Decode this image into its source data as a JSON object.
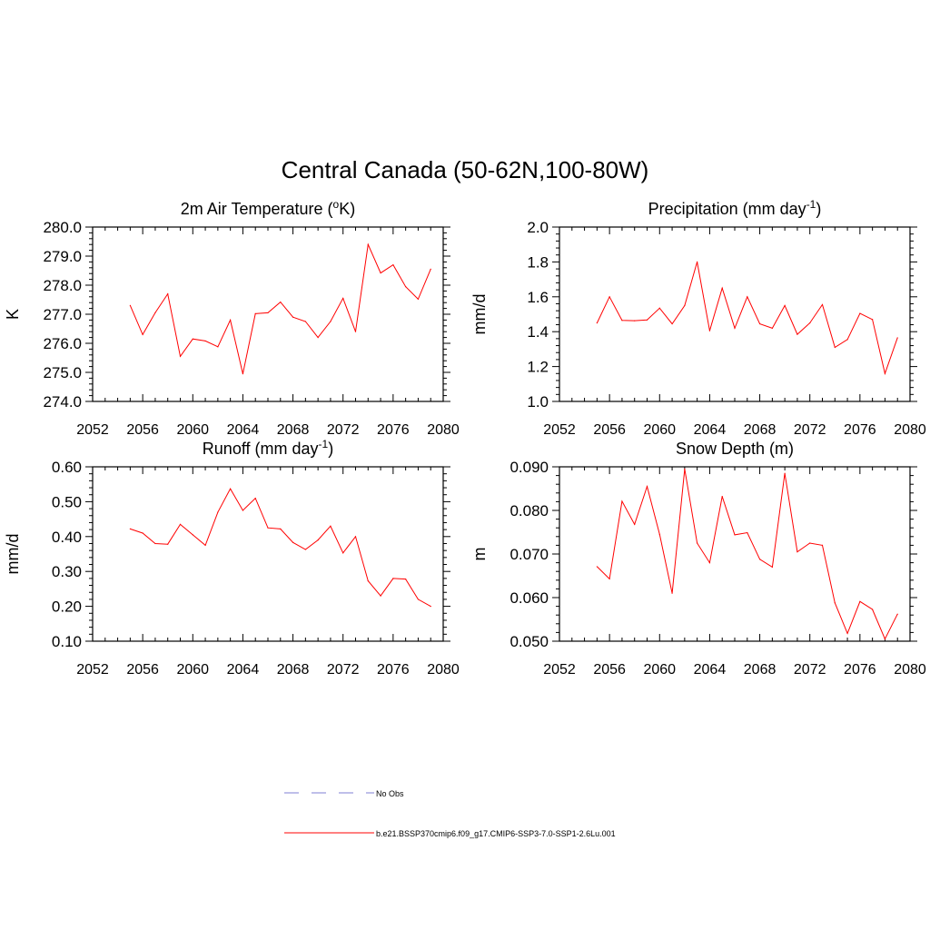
{
  "figure": {
    "title": "Central Canada (50-62N,100-80W)"
  },
  "colors": {
    "series": "#ff0000",
    "obs": "#9999dd",
    "axis": "#000000"
  },
  "legend": {
    "obs_label": "No Obs",
    "model_label": "b.e21.BSSP370cmip6.f09_g17.CMIP6-SSP3-7.0-SSP1-2.6Lu.001"
  },
  "chart_data": [
    {
      "type": "line",
      "title": "2m Air Temperature (oK)",
      "title_main": "2m Air Temperature (",
      "title_sup": "o",
      "title_end": "K)",
      "ylabel": "K",
      "xlim": [
        2052,
        2080
      ],
      "ylim": [
        274.0,
        280.0
      ],
      "xticks": [
        2052,
        2056,
        2060,
        2064,
        2068,
        2072,
        2076,
        2080
      ],
      "yticks": [
        274.0,
        275.0,
        276.0,
        277.0,
        278.0,
        279.0,
        280.0
      ],
      "ytick_labels": [
        "274.0",
        "275.0",
        "276.0",
        "277.0",
        "278.0",
        "279.0",
        "280.0"
      ],
      "x": [
        2055,
        2056,
        2057,
        2058,
        2059,
        2060,
        2061,
        2062,
        2063,
        2064,
        2065,
        2066,
        2067,
        2068,
        2069,
        2070,
        2071,
        2072,
        2073,
        2074,
        2075,
        2076,
        2077,
        2078,
        2079
      ],
      "y": [
        277.3,
        276.3,
        277.05,
        277.7,
        275.55,
        276.15,
        276.08,
        275.88,
        276.8,
        274.95,
        277.02,
        277.05,
        277.42,
        276.9,
        276.75,
        276.2,
        276.75,
        277.55,
        276.4,
        279.4,
        278.42,
        278.7,
        277.95,
        277.52,
        278.55
      ]
    },
    {
      "type": "line",
      "title": "Precipitation (mm day-1)",
      "title_main": "Precipitation (mm day",
      "title_sup": "-1",
      "title_end": ")",
      "ylabel": "mm/d",
      "xlim": [
        2052,
        2080
      ],
      "ylim": [
        1.0,
        2.0
      ],
      "xticks": [
        2052,
        2056,
        2060,
        2064,
        2068,
        2072,
        2076,
        2080
      ],
      "yticks": [
        1.0,
        1.2,
        1.4,
        1.6,
        1.8,
        2.0
      ],
      "ytick_labels": [
        "1.0",
        "1.2",
        "1.4",
        "1.6",
        "1.8",
        "2.0"
      ],
      "x": [
        2055,
        2056,
        2057,
        2058,
        2059,
        2060,
        2061,
        2062,
        2063,
        2064,
        2065,
        2066,
        2067,
        2068,
        2069,
        2070,
        2071,
        2072,
        2073,
        2074,
        2075,
        2076,
        2077,
        2078,
        2079
      ],
      "y": [
        1.45,
        1.6,
        1.465,
        1.463,
        1.467,
        1.535,
        1.445,
        1.55,
        1.8,
        1.405,
        1.65,
        1.42,
        1.6,
        1.445,
        1.42,
        1.55,
        1.385,
        1.45,
        1.555,
        1.31,
        1.355,
        1.505,
        1.47,
        1.16,
        1.365
      ]
    },
    {
      "type": "line",
      "title": "Runoff (mm day-1)",
      "title_main": "Runoff (mm day",
      "title_sup": "-1",
      "title_end": ")",
      "ylabel": "mm/d",
      "xlim": [
        2052,
        2080
      ],
      "ylim": [
        0.1,
        0.6
      ],
      "xticks": [
        2052,
        2056,
        2060,
        2064,
        2068,
        2072,
        2076,
        2080
      ],
      "yticks": [
        0.1,
        0.2,
        0.3,
        0.4,
        0.5,
        0.6
      ],
      "ytick_labels": [
        "0.10",
        "0.20",
        "0.30",
        "0.40",
        "0.50",
        "0.60"
      ],
      "x": [
        2055,
        2056,
        2057,
        2058,
        2059,
        2060,
        2061,
        2062,
        2063,
        2064,
        2065,
        2066,
        2067,
        2068,
        2069,
        2070,
        2071,
        2072,
        2073,
        2074,
        2075,
        2076,
        2077,
        2078,
        2079
      ],
      "y": [
        0.422,
        0.41,
        0.38,
        0.378,
        0.435,
        0.405,
        0.375,
        0.47,
        0.537,
        0.475,
        0.51,
        0.425,
        0.422,
        0.383,
        0.363,
        0.39,
        0.43,
        0.353,
        0.4,
        0.273,
        0.23,
        0.28,
        0.278,
        0.22,
        0.2
      ]
    },
    {
      "type": "line",
      "title": "Snow Depth (m)",
      "title_main": "Snow Depth (m)",
      "title_sup": "",
      "title_end": "",
      "ylabel": "m",
      "xlim": [
        2052,
        2080
      ],
      "ylim": [
        0.05,
        0.09
      ],
      "xticks": [
        2052,
        2056,
        2060,
        2064,
        2068,
        2072,
        2076,
        2080
      ],
      "yticks": [
        0.05,
        0.06,
        0.07,
        0.08,
        0.09
      ],
      "ytick_labels": [
        "0.050",
        "0.060",
        "0.070",
        "0.080",
        "0.090"
      ],
      "x": [
        2055,
        2056,
        2057,
        2058,
        2059,
        2060,
        2061,
        2062,
        2063,
        2064,
        2065,
        2066,
        2067,
        2068,
        2069,
        2070,
        2071,
        2072,
        2073,
        2074,
        2075,
        2076,
        2077,
        2078,
        2079
      ],
      "y": [
        0.0671,
        0.0643,
        0.0821,
        0.0768,
        0.0855,
        0.0745,
        0.061,
        0.0895,
        0.0725,
        0.068,
        0.0832,
        0.0744,
        0.0749,
        0.0688,
        0.067,
        0.0885,
        0.0705,
        0.0725,
        0.072,
        0.0588,
        0.0518,
        0.0591,
        0.0573,
        0.0505,
        0.0562
      ]
    }
  ]
}
